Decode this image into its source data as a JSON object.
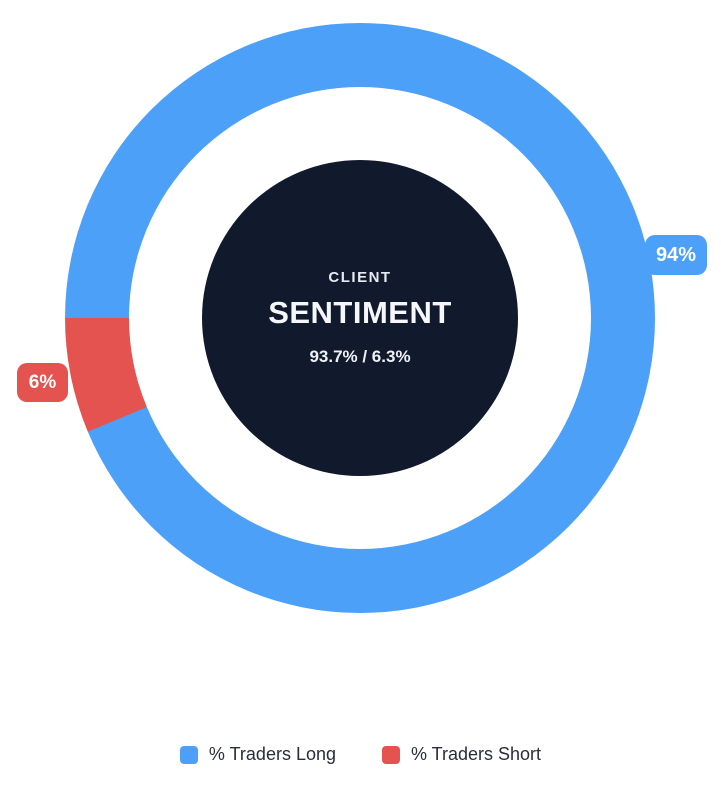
{
  "colors": {
    "blue": "#4da0f8",
    "red": "#e4534f",
    "navy": "#111a2c",
    "legendText": "#2b2d3a",
    "badgeText": "#ffffff"
  },
  "chart_data": {
    "type": "pie",
    "variant": "donut",
    "title": "CLIENT SENTIMENT",
    "labels": [
      "% Traders Long",
      "% Traders Short"
    ],
    "values": [
      93.7,
      6.3
    ],
    "display_values": [
      "94%",
      "6%"
    ],
    "colors": [
      "#4da0f8",
      "#e4534f"
    ],
    "center_label": {
      "eyebrow": "CLIENT",
      "title": "SENTIMENT",
      "ratio": "93.7% / 6.3%"
    },
    "legend_position": "bottom",
    "start_angle_deg": 270,
    "direction": "clockwise",
    "grid": false
  }
}
